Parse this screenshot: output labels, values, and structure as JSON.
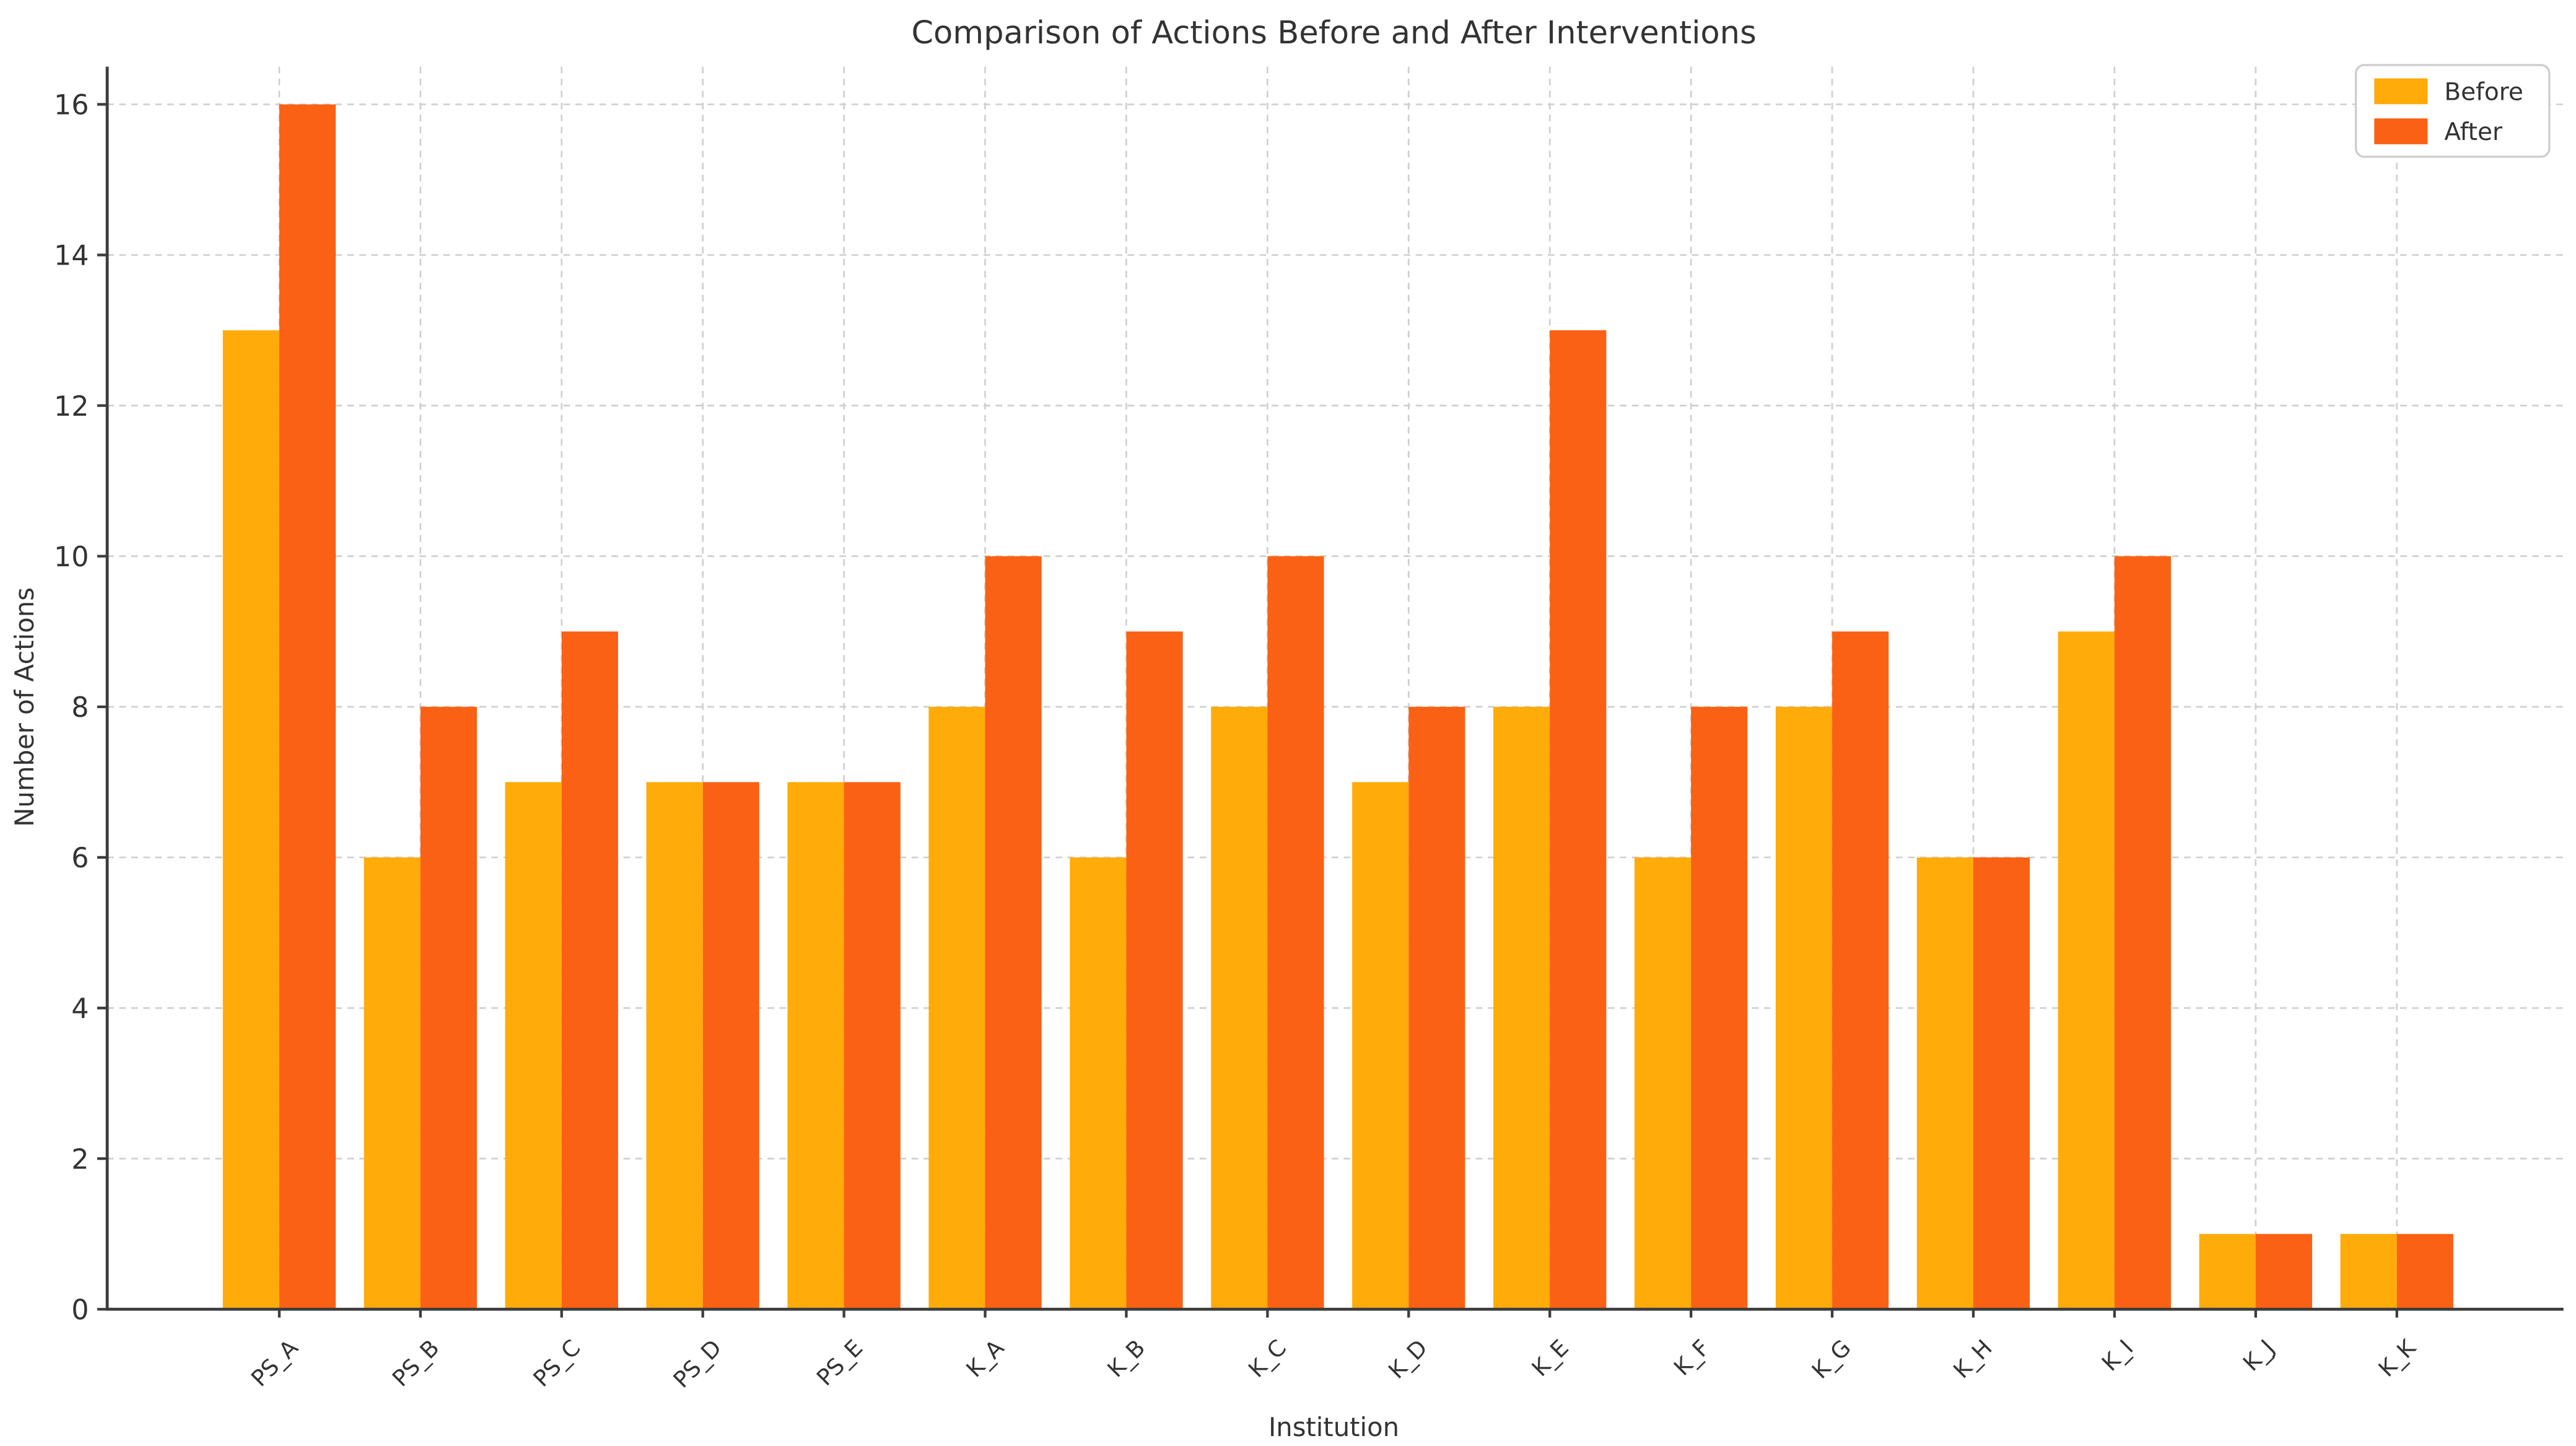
{
  "figure": {
    "background": "#ffffff"
  },
  "chart_data": {
    "type": "bar",
    "title": "Comparison of Actions Before and After Interventions",
    "xlabel": "Institution",
    "ylabel": "Number of Actions",
    "categories": [
      "PS_A",
      "PS_B",
      "PS_C",
      "PS_D",
      "PS_E",
      "K_A",
      "K_B",
      "K_C",
      "K_D",
      "K_E",
      "K_F",
      "K_G",
      "K_H",
      "K_I",
      "K_J",
      "K_K"
    ],
    "series": [
      {
        "name": "Before",
        "color": "#FFAB0A",
        "values": [
          13,
          6,
          7,
          7,
          7,
          8,
          6,
          8,
          7,
          8,
          6,
          8,
          6,
          9,
          1,
          1
        ]
      },
      {
        "name": "After",
        "color": "#FB6114",
        "values": [
          16,
          8,
          9,
          7,
          7,
          10,
          9,
          10,
          8,
          13,
          8,
          9,
          6,
          10,
          1,
          1
        ]
      }
    ],
    "yticks": [
      0,
      2,
      4,
      6,
      8,
      10,
      12,
      14,
      16
    ],
    "ylim": [
      0,
      16.5
    ],
    "grid": true,
    "grid_style": "dashed",
    "legend_position": "upper right",
    "bar_width_fraction": 0.4,
    "colors": {
      "grid": "#cfcfcf",
      "spine": "#3d3d3d",
      "text": "#333333",
      "background": "#ffffff"
    }
  }
}
